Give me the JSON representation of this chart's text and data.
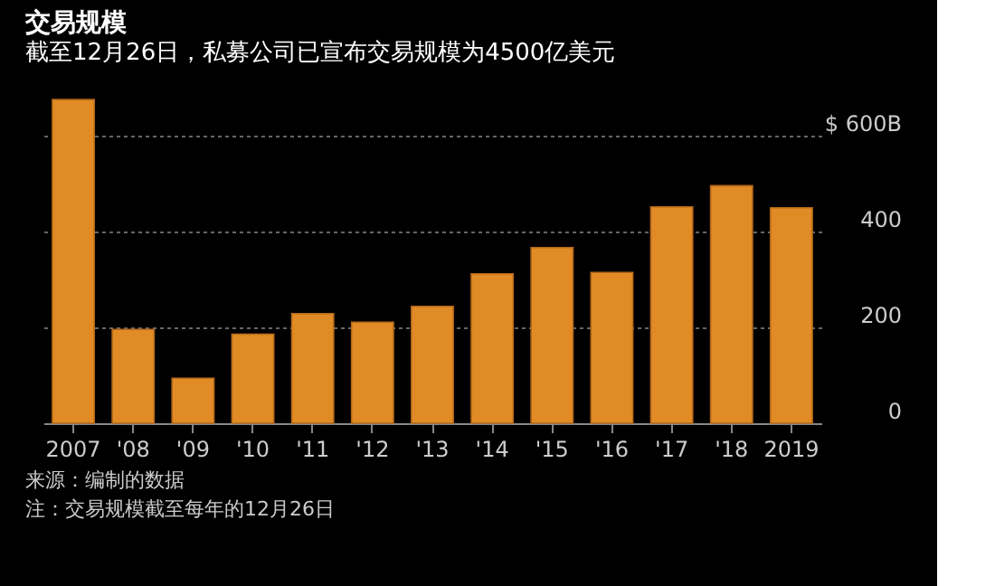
{
  "chart_data": {
    "type": "bar",
    "title": "交易规模",
    "subtitle": "截至12月26日，私募公司已宣布交易规模为4500亿美元",
    "categories": [
      "2007",
      "'08",
      "'09",
      "'10",
      "'11",
      "'12",
      "'13",
      "'14",
      "'15",
      "'16",
      "'17",
      "'18",
      "2019"
    ],
    "values": [
      676,
      196,
      94,
      186,
      229,
      211,
      244,
      312,
      367,
      315,
      452,
      496,
      450
    ],
    "color": "#e08b26",
    "ylim": [
      0,
      680
    ],
    "yticks": [
      0,
      200,
      400,
      {
        "value": 600,
        "label": "$ 600B"
      }
    ],
    "grid": "y",
    "annotations": [
      "来源：编制的数据",
      "注：交易规模截至每年的12月26日"
    ]
  }
}
